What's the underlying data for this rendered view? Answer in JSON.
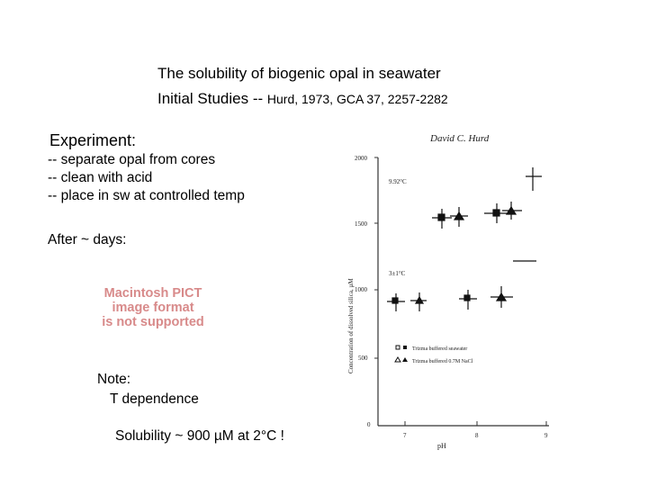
{
  "title": {
    "line1": "The solubility of biogenic opal in seawater",
    "line2_main": "Initial Studies -- ",
    "line2_ref": "Hurd, 1973, GCA 37, 2257-2282"
  },
  "experiment": {
    "heading": "Experiment:",
    "steps": [
      "-- separate opal from cores",
      "-- clean with acid",
      "-- place in sw at controlled temp"
    ]
  },
  "after": "After ~ days:",
  "pict_placeholder": [
    "Macintosh PICT",
    "image format",
    "is not supported"
  ],
  "note": {
    "heading": "Note:",
    "text": "T dependence"
  },
  "solubility": "Solubility ~ 900 µM at 2°C !",
  "figure": {
    "author": "David C. Hurd",
    "ylabel": "Concentration of dissolved silica, µM",
    "xlabel": "pH",
    "yticks": [
      "2000",
      "1500",
      "1000",
      "500",
      "0"
    ],
    "xticks": [
      "7",
      "8",
      "9"
    ],
    "series_labels": [
      "9.92°C",
      "3±1°C"
    ],
    "legend": [
      "Trizma buffered seawater",
      "Trizma buffered 0.7M NaCl"
    ]
  }
}
